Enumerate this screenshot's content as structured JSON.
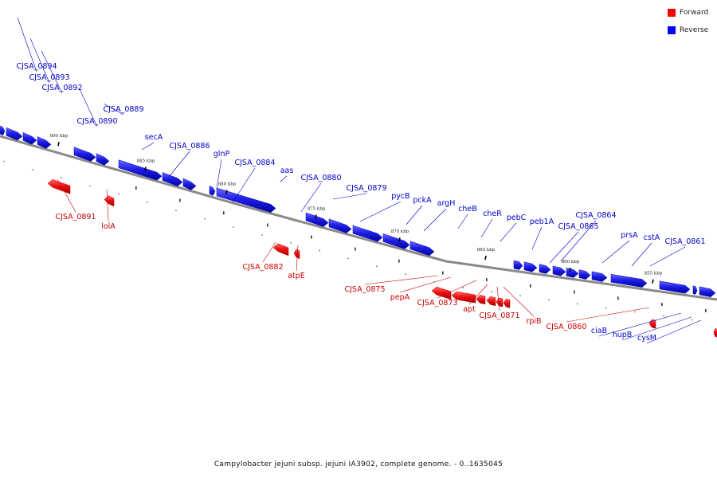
{
  "legend": {
    "items": [
      {
        "label": "Forward",
        "color": "#ff0000"
      },
      {
        "label": "Reverse",
        "color": "#0000ff"
      }
    ]
  },
  "colors": {
    "forward": "#ff0000",
    "reverse": "#1f1fe6",
    "backbone": "#888888"
  },
  "caption": "Campylobacter jejuni subsp. jejuni IA3902, complete genome. - 0..1635045",
  "ticks": [
    "890 kbp",
    "885 kbp",
    "880 kbp",
    "875 kbp",
    "870 kbp",
    "865 kbp",
    "860 kbp",
    "855 kbp"
  ],
  "genes": {
    "reverse": [
      "CJSA_0894",
      "CJSA_0893",
      "CJSA_0892",
      "CJSA_0890",
      "CJSA_0889",
      "secA",
      "CJSA_0886",
      "glnP",
      "CJSA_0884",
      "aas",
      "CJSA_0880",
      "CJSA_0879",
      "pycB",
      "pckA",
      "argH",
      "cheB",
      "cheR",
      "pebC",
      "peb1A",
      "CJSA_0864",
      "CJSA_0865",
      "prsA",
      "cstA",
      "CJSA_0861",
      "ciaB",
      "hupB",
      "cysM"
    ],
    "forward": [
      "CJSA_0891",
      "lolA",
      "CJSA_0882",
      "atpE",
      "CJSA_0875",
      "pepA",
      "CJSA_0873",
      "apt",
      "CJSA_0871",
      "rpiB",
      "CJSA_0860"
    ]
  }
}
